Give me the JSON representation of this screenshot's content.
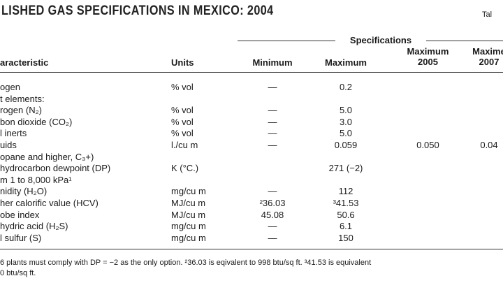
{
  "header": {
    "title": "LISHED GAS SPECIFICATIONS IN MEXICO: 2004",
    "label": "Tal"
  },
  "table": {
    "group_header": "Specifications",
    "columns": [
      "aracteristic",
      "Units",
      "Minimum",
      "Maximum",
      "Maximum\n2005",
      "Maxime\n2007"
    ],
    "rows": [
      [
        "ogen",
        "% vol",
        "—",
        "0.2",
        null,
        null
      ],
      [
        "t elements:",
        null,
        null,
        null,
        null,
        null
      ],
      [
        "rogen (N₂)",
        "% vol",
        "—",
        "5.0",
        null,
        null
      ],
      [
        "bon dioxide (CO₂)",
        "% vol",
        "—",
        "3.0",
        null,
        null
      ],
      [
        "l inerts",
        "% vol",
        "—",
        "5.0",
        null,
        null
      ],
      [
        "uids",
        "l./cu m",
        "—",
        "0.059",
        "0.050",
        "0.04"
      ],
      [
        "opane and higher, C₃+)",
        null,
        null,
        null,
        null,
        null
      ],
      [
        "hydrocarbon dewpoint (DP)",
        "K (°C.)",
        null,
        "271 (−2)",
        null,
        null
      ],
      [
        "m 1 to 8,000 kPa¹",
        null,
        null,
        null,
        null,
        null
      ],
      [
        "nidity (H₂O)",
        "mg/cu m",
        "—",
        "112",
        null,
        null
      ],
      [
        "her calorific value (HCV)",
        "MJ/cu m",
        "²36.03",
        "³41.53",
        null,
        null
      ],
      [
        "obe index",
        "MJ/cu m",
        "45.08",
        "50.6",
        null,
        null
      ],
      [
        "hydric acid (H₂S)",
        "mg/cu m",
        "—",
        "6.1",
        null,
        null
      ],
      [
        "l sulfur (S)",
        "mg/cu m",
        "—",
        "150",
        null,
        null
      ]
    ]
  },
  "footnote": [
    "6 plants must comply with DP = −2 as the only option. ²36.03 is eqivalent to 998 btu/sq ft. ³41.53 is equivalent",
    "0 btu/sq ft."
  ]
}
